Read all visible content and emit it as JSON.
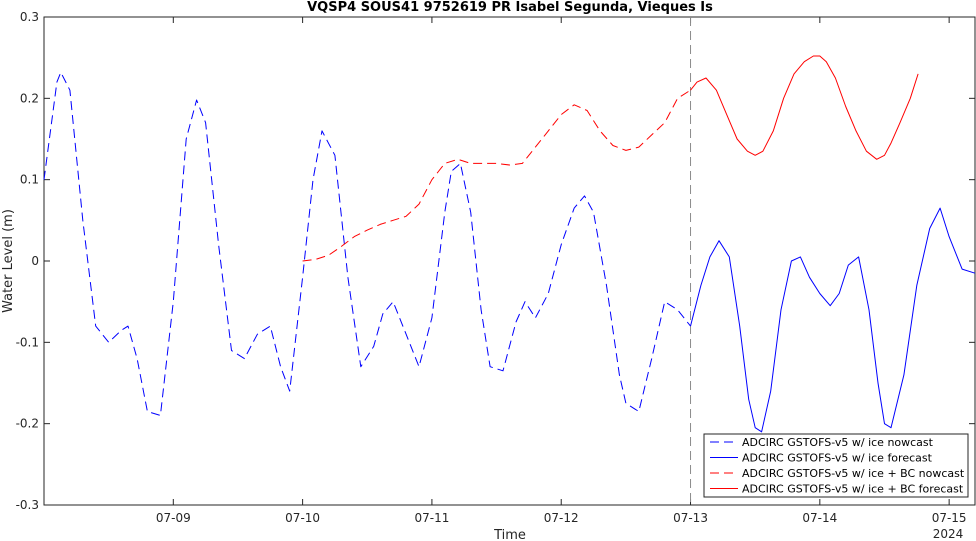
{
  "chart_data": {
    "type": "line",
    "title": "VQSP4 SOUS41 9752619 PR Isabel Segunda, Vieques Is",
    "xlabel": "Time",
    "ylabel": "Water Level (m)",
    "x_year_label": "2024",
    "xlim": [
      0,
      7.2
    ],
    "ylim": [
      -0.3,
      0.3
    ],
    "yticks": [
      -0.3,
      -0.2,
      -0.1,
      0,
      0.1,
      0.2,
      0.3
    ],
    "ytick_labels": [
      "-0.3",
      "-0.2",
      "-0.1",
      "0",
      "0.1",
      "0.2",
      "0.3"
    ],
    "xticks": [
      1,
      2,
      3,
      4,
      5,
      6,
      7
    ],
    "xtick_labels": [
      "07-09",
      "07-10",
      "07-11",
      "07-12",
      "07-13",
      "07-14",
      "07-15"
    ],
    "x_units": "days after 07-08 00:00",
    "nowcast_boundary_x": 5,
    "legend_position": "bottom-right",
    "colors": {
      "ice": "#0000ff",
      "ice_bc": "#ff0000",
      "axis": "#262626",
      "boundary": "#8c8c8c"
    },
    "series": [
      {
        "name": "ADCIRC GSTOFS-v5 w/ ice nowcast",
        "color": "#0000ff",
        "dash": "9,5",
        "x": [
          0.0,
          0.1,
          0.13,
          0.2,
          0.3,
          0.4,
          0.5,
          0.6,
          0.65,
          0.72,
          0.8,
          0.9,
          1.0,
          1.1,
          1.18,
          1.25,
          1.35,
          1.45,
          1.55,
          1.65,
          1.75,
          1.83,
          1.9,
          2.0,
          2.08,
          2.15,
          2.25,
          2.35,
          2.45,
          2.55,
          2.62,
          2.7,
          2.8,
          2.9,
          3.0,
          3.1,
          3.15,
          3.22,
          3.3,
          3.38,
          3.45,
          3.55,
          3.65,
          3.72,
          3.8,
          3.9,
          4.0,
          4.1,
          4.18,
          4.25,
          4.35,
          4.45,
          4.5,
          4.6,
          4.7,
          4.8,
          4.9,
          5.0
        ],
        "y": [
          0.1,
          0.22,
          0.232,
          0.21,
          0.05,
          -0.08,
          -0.1,
          -0.085,
          -0.08,
          -0.12,
          -0.185,
          -0.19,
          -0.05,
          0.15,
          0.198,
          0.17,
          0.02,
          -0.11,
          -0.12,
          -0.09,
          -0.08,
          -0.13,
          -0.16,
          -0.02,
          0.1,
          0.16,
          0.13,
          -0.02,
          -0.13,
          -0.105,
          -0.065,
          -0.05,
          -0.09,
          -0.13,
          -0.07,
          0.06,
          0.11,
          0.12,
          0.06,
          -0.06,
          -0.13,
          -0.135,
          -0.075,
          -0.05,
          -0.07,
          -0.04,
          0.02,
          0.065,
          0.08,
          0.06,
          -0.03,
          -0.14,
          -0.175,
          -0.185,
          -0.12,
          -0.05,
          -0.06,
          -0.08
        ]
      },
      {
        "name": "ADCIRC GSTOFS-v5 w/ ice forecast",
        "color": "#0000ff",
        "dash": "",
        "x": [
          5.0,
          5.08,
          5.15,
          5.22,
          5.3,
          5.38,
          5.45,
          5.5,
          5.55,
          5.62,
          5.7,
          5.78,
          5.85,
          5.92,
          6.0,
          6.08,
          6.15,
          6.22,
          6.3,
          6.38,
          6.45,
          6.5,
          6.55,
          6.65,
          6.75,
          6.85,
          6.93,
          7.0,
          7.1,
          7.2
        ],
        "y": [
          -0.08,
          -0.03,
          0.005,
          0.025,
          0.005,
          -0.08,
          -0.17,
          -0.205,
          -0.21,
          -0.16,
          -0.06,
          0.0,
          0.005,
          -0.02,
          -0.04,
          -0.055,
          -0.04,
          -0.005,
          0.005,
          -0.06,
          -0.15,
          -0.2,
          -0.205,
          -0.14,
          -0.03,
          0.04,
          0.065,
          0.03,
          -0.01,
          -0.015
        ]
      },
      {
        "name": "ADCIRC GSTOFS-v5 w/ ice + BC nowcast",
        "color": "#ff0000",
        "dash": "9,5",
        "x": [
          2.0,
          2.1,
          2.2,
          2.3,
          2.4,
          2.5,
          2.6,
          2.7,
          2.8,
          2.9,
          3.0,
          3.05,
          3.1,
          3.2,
          3.3,
          3.5,
          3.6,
          3.7,
          3.8,
          3.9,
          4.0,
          4.1,
          4.2,
          4.3,
          4.4,
          4.5,
          4.6,
          4.7,
          4.8,
          4.9,
          5.0
        ],
        "y": [
          0.0,
          0.002,
          0.007,
          0.018,
          0.03,
          0.038,
          0.045,
          0.05,
          0.055,
          0.07,
          0.1,
          0.11,
          0.12,
          0.125,
          0.12,
          0.12,
          0.118,
          0.12,
          0.14,
          0.16,
          0.18,
          0.192,
          0.185,
          0.16,
          0.142,
          0.136,
          0.14,
          0.155,
          0.17,
          0.2,
          0.21
        ]
      },
      {
        "name": "ADCIRC GSTOFS-v5 w/ ice + BC forecast",
        "color": "#ff0000",
        "dash": "",
        "x": [
          5.0,
          5.05,
          5.12,
          5.2,
          5.28,
          5.36,
          5.44,
          5.5,
          5.56,
          5.64,
          5.72,
          5.8,
          5.88,
          5.95,
          6.0,
          6.05,
          6.12,
          6.2,
          6.28,
          6.36,
          6.44,
          6.5,
          6.55,
          6.62,
          6.7,
          6.76
        ],
        "y": [
          0.21,
          0.22,
          0.225,
          0.21,
          0.18,
          0.15,
          0.135,
          0.13,
          0.135,
          0.16,
          0.2,
          0.23,
          0.245,
          0.252,
          0.252,
          0.245,
          0.225,
          0.19,
          0.16,
          0.135,
          0.125,
          0.13,
          0.145,
          0.17,
          0.2,
          0.23
        ]
      }
    ]
  }
}
